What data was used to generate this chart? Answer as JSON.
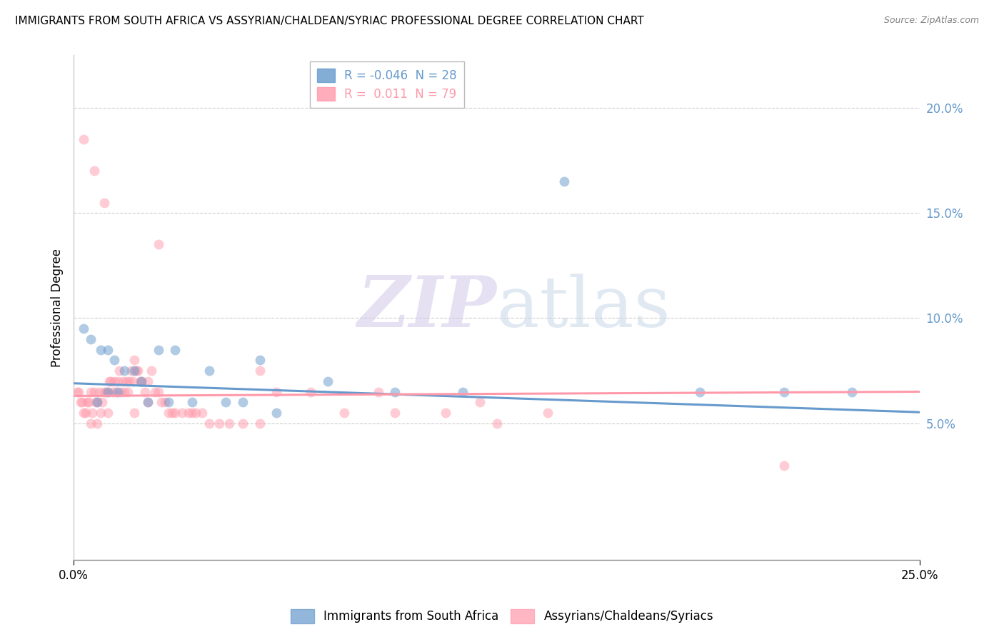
{
  "title": "IMMIGRANTS FROM SOUTH AFRICA VS ASSYRIAN/CHALDEAN/SYRIAC PROFESSIONAL DEGREE CORRELATION CHART",
  "source": "Source: ZipAtlas.com",
  "ylabel": "Professional Degree",
  "y_tick_positions_pct": [
    5.0,
    10.0,
    15.0,
    20.0
  ],
  "xlim": [
    0.0,
    25.0
  ],
  "ylim": [
    -1.5,
    22.5
  ],
  "legend_entries": [
    {
      "label": "R = -0.046  N = 28",
      "color": "#6699cc"
    },
    {
      "label": "R =  0.011  N = 79",
      "color": "#ff99aa"
    }
  ],
  "legend_series": [
    "Immigrants from South Africa",
    "Assyrians/Chaldeans/Syriacs"
  ],
  "blue_scatter_x": [
    0.3,
    0.5,
    0.8,
    1.0,
    1.2,
    1.5,
    1.8,
    2.0,
    2.5,
    3.0,
    4.0,
    5.5,
    7.5,
    9.5,
    11.5,
    14.5,
    18.5,
    21.0,
    5.0,
    3.5,
    6.0,
    2.2,
    1.0,
    1.3,
    0.7,
    2.8,
    4.5,
    23.0
  ],
  "blue_scatter_y": [
    9.5,
    9.0,
    8.5,
    8.5,
    8.0,
    7.5,
    7.5,
    7.0,
    8.5,
    8.5,
    7.5,
    8.0,
    7.0,
    6.5,
    6.5,
    16.5,
    6.5,
    6.5,
    6.0,
    6.0,
    5.5,
    6.0,
    6.5,
    6.5,
    6.0,
    6.0,
    6.0,
    6.5
  ],
  "pink_scatter_x": [
    0.1,
    0.15,
    0.2,
    0.25,
    0.3,
    0.35,
    0.4,
    0.45,
    0.5,
    0.55,
    0.6,
    0.65,
    0.7,
    0.75,
    0.8,
    0.85,
    0.9,
    0.95,
    1.0,
    1.05,
    1.1,
    1.15,
    1.2,
    1.25,
    1.3,
    1.35,
    1.4,
    1.45,
    1.5,
    1.55,
    1.6,
    1.65,
    1.7,
    1.75,
    1.8,
    1.85,
    1.9,
    1.95,
    2.0,
    2.1,
    2.2,
    2.3,
    2.4,
    2.5,
    2.6,
    2.7,
    2.8,
    2.9,
    3.0,
    3.2,
    3.4,
    3.6,
    3.8,
    4.0,
    4.3,
    4.6,
    5.0,
    5.5,
    6.0,
    7.0,
    8.0,
    9.5,
    11.0,
    12.5,
    0.5,
    0.7,
    1.0,
    1.8,
    2.2,
    3.5,
    5.5,
    9.0,
    12.0,
    14.0,
    21.0,
    0.3,
    0.6,
    0.9,
    2.5
  ],
  "pink_scatter_y": [
    6.5,
    6.5,
    6.0,
    6.0,
    5.5,
    5.5,
    6.0,
    6.0,
    6.5,
    5.5,
    6.5,
    6.0,
    6.0,
    6.5,
    5.5,
    6.0,
    6.5,
    6.5,
    6.5,
    7.0,
    7.0,
    6.5,
    7.0,
    6.5,
    7.0,
    7.5,
    6.5,
    7.0,
    6.5,
    7.0,
    6.5,
    7.0,
    7.5,
    7.0,
    8.0,
    7.5,
    7.5,
    7.0,
    7.0,
    6.5,
    7.0,
    7.5,
    6.5,
    6.5,
    6.0,
    6.0,
    5.5,
    5.5,
    5.5,
    5.5,
    5.5,
    5.5,
    5.5,
    5.0,
    5.0,
    5.0,
    5.0,
    5.0,
    6.5,
    6.5,
    5.5,
    5.5,
    5.5,
    5.0,
    5.0,
    5.0,
    5.5,
    5.5,
    6.0,
    5.5,
    7.5,
    6.5,
    6.0,
    5.5,
    3.0,
    18.5,
    17.0,
    15.5,
    13.5
  ],
  "blue_line_x": [
    0.0,
    25.0
  ],
  "blue_line_y_start": 6.9,
  "blue_line_slope": -0.055,
  "pink_line_x": [
    0.0,
    25.0
  ],
  "pink_line_y_start": 6.3,
  "pink_line_slope": 0.008,
  "watermark_zip": "ZIP",
  "watermark_atlas": "atlas",
  "scatter_size": 100,
  "scatter_alpha": 0.5,
  "blue_color": "#6699cc",
  "pink_color": "#ff99aa",
  "grid_color": "#cccccc",
  "background_color": "#ffffff"
}
